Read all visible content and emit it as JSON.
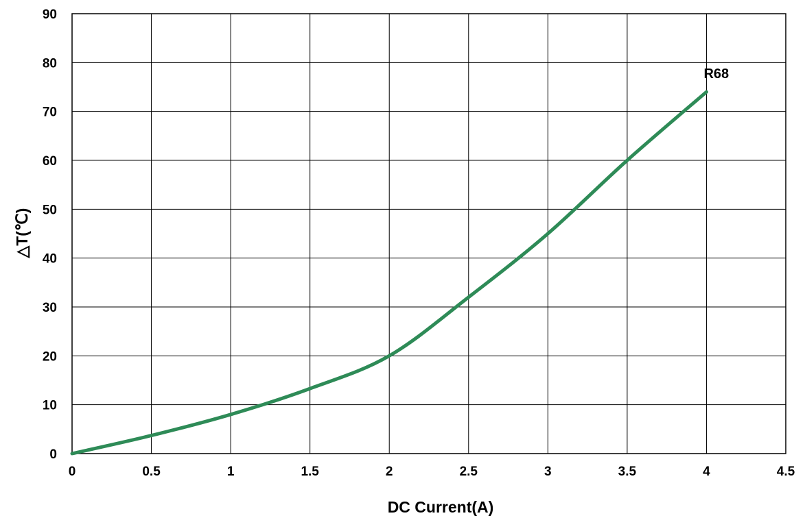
{
  "chart_data": {
    "type": "line",
    "xlabel": "DC Current(A)",
    "ylabel": "△T(℃)",
    "xlim": [
      0,
      4.5
    ],
    "ylim": [
      0,
      90
    ],
    "x_ticks": [
      "0",
      "0.5",
      "1",
      "1.5",
      "2",
      "2.5",
      "3",
      "3.5",
      "4",
      "4.5"
    ],
    "y_ticks": [
      "0",
      "10",
      "20",
      "30",
      "40",
      "50",
      "60",
      "70",
      "80",
      "90"
    ],
    "grid": true,
    "series": [
      {
        "name": "R68",
        "color": "#2e8b57",
        "x": [
          0,
          0.5,
          1,
          1.5,
          2,
          2.5,
          3,
          3.5,
          4
        ],
        "y": [
          0,
          3.7,
          8,
          13.3,
          20,
          32,
          45,
          60,
          74
        ]
      }
    ]
  }
}
